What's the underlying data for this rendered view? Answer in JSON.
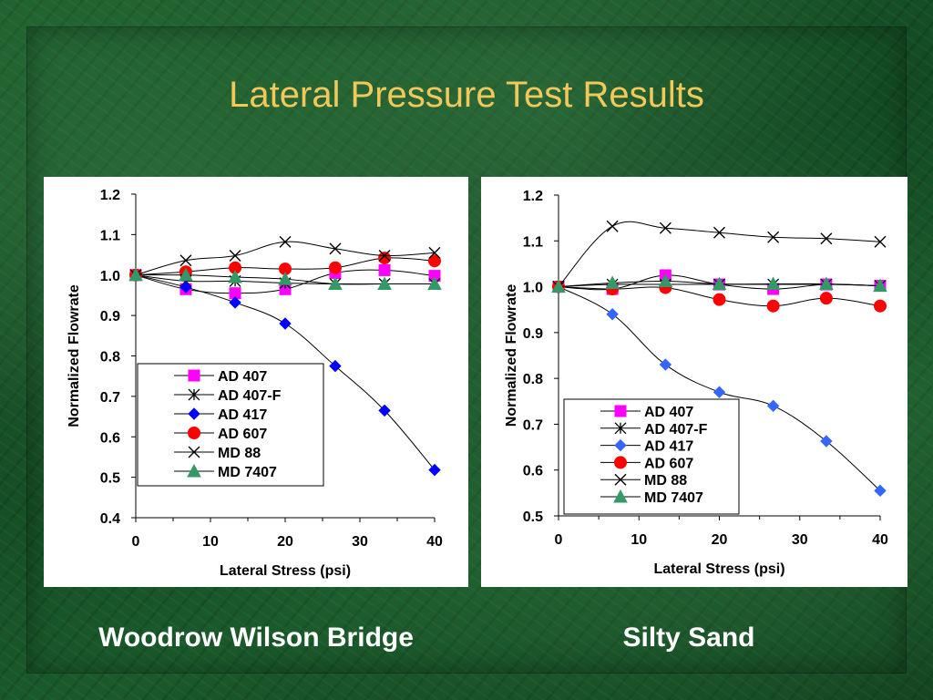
{
  "slide": {
    "title": "Lateral Pressure Test Results",
    "caption_left": "Woodrow Wilson Bridge",
    "caption_right": "Silty Sand",
    "title_color": "#f2c85b",
    "background_color": "#0f4a1c"
  },
  "chart_data": [
    {
      "type": "line",
      "xlabel": "Lateral Stress (psi)",
      "ylabel": "Normalized Flowrate",
      "xlim": [
        0,
        40
      ],
      "ylim": [
        0.4,
        1.2
      ],
      "xticks": [
        0,
        10,
        20,
        30,
        40
      ],
      "yticks": [
        0.4,
        0.5,
        0.6,
        0.7,
        0.8,
        0.9,
        1.0,
        1.1,
        1.2
      ],
      "ytick_labels": [
        "0.4",
        "0.5",
        "0.6",
        "0.7",
        "0.8",
        "0.9",
        "1.0",
        "1.1",
        "1.2"
      ],
      "xtick_labels": [
        "0",
        "10",
        "20",
        "30",
        "40"
      ],
      "legend_position": "bottom-left",
      "series": [
        {
          "name": "AD 407",
          "marker": "square",
          "color": "#ff00ff",
          "x": [
            0,
            6.7,
            13.3,
            20,
            26.7,
            33.3,
            40
          ],
          "y": [
            1.0,
            0.965,
            0.955,
            0.965,
            1.005,
            1.012,
            0.998
          ]
        },
        {
          "name": "AD 407-F",
          "marker": "asterisk",
          "color": "#000000",
          "x": [
            0,
            6.7,
            13.3,
            20,
            26.7,
            33.3,
            40
          ],
          "y": [
            1.0,
            0.985,
            0.985,
            0.98,
            0.978,
            0.978,
            0.978
          ]
        },
        {
          "name": "AD 417",
          "marker": "diamond",
          "color": "#0000ff",
          "x": [
            0,
            6.7,
            13.3,
            20,
            26.7,
            33.3,
            40
          ],
          "y": [
            1.0,
            0.97,
            0.932,
            0.88,
            0.775,
            0.665,
            0.518
          ]
        },
        {
          "name": "AD 607",
          "marker": "circle",
          "color": "#ff0000",
          "x": [
            0,
            6.7,
            13.3,
            20,
            26.7,
            33.3,
            40
          ],
          "y": [
            1.0,
            1.008,
            1.018,
            1.015,
            1.018,
            1.042,
            1.035
          ]
        },
        {
          "name": "MD 88",
          "marker": "x",
          "color": "#000000",
          "x": [
            0,
            6.7,
            13.3,
            20,
            26.7,
            33.3,
            40
          ],
          "y": [
            1.0,
            1.036,
            1.048,
            1.082,
            1.065,
            1.048,
            1.055
          ]
        },
        {
          "name": "MD 7407",
          "marker": "triangle",
          "color": "#339966",
          "x": [
            0,
            6.7,
            13.3,
            20,
            26.7,
            33.3,
            40
          ],
          "y": [
            1.0,
            1.0,
            0.995,
            0.99,
            0.978,
            0.978,
            0.978
          ]
        }
      ]
    },
    {
      "type": "line",
      "xlabel": "Lateral Stress (psi)",
      "ylabel": "Normalized Flowrate",
      "xlim": [
        0,
        40
      ],
      "ylim": [
        0.5,
        1.2
      ],
      "xticks": [
        0,
        10,
        20,
        30,
        40
      ],
      "yticks": [
        0.5,
        0.6,
        0.7,
        0.8,
        0.9,
        1.0,
        1.1,
        1.2
      ],
      "ytick_labels": [
        "0.5",
        "0.6",
        "0.7",
        "0.8",
        "0.9",
        "1.0",
        "1.1",
        "1.2"
      ],
      "xtick_labels": [
        "0",
        "10",
        "20",
        "30",
        "40"
      ],
      "legend_position": "bottom-left",
      "series": [
        {
          "name": "AD 407",
          "marker": "square",
          "color": "#ff00ff",
          "x": [
            0,
            6.7,
            13.3,
            20,
            26.7,
            33.3,
            40
          ],
          "y": [
            1.0,
            0.995,
            1.025,
            1.005,
            0.995,
            1.005,
            1.002
          ]
        },
        {
          "name": "AD 407-F",
          "marker": "asterisk",
          "color": "#000000",
          "x": [
            0,
            6.7,
            13.3,
            20,
            26.7,
            33.3,
            40
          ],
          "y": [
            1.0,
            1.005,
            1.005,
            1.005,
            1.005,
            1.005,
            1.002
          ]
        },
        {
          "name": "AD 417",
          "marker": "diamond",
          "color": "#3366ff",
          "x": [
            0,
            6.7,
            13.3,
            20,
            26.7,
            33.3,
            40
          ],
          "y": [
            1.0,
            0.94,
            0.83,
            0.77,
            0.74,
            0.663,
            0.555
          ]
        },
        {
          "name": "AD 607",
          "marker": "circle",
          "color": "#ff0000",
          "x": [
            0,
            6.7,
            13.3,
            20,
            26.7,
            33.3,
            40
          ],
          "y": [
            1.0,
            0.995,
            0.998,
            0.972,
            0.958,
            0.975,
            0.958
          ]
        },
        {
          "name": "MD 88",
          "marker": "x",
          "color": "#000000",
          "x": [
            0,
            6.7,
            13.3,
            20,
            26.7,
            33.3,
            40
          ],
          "y": [
            1.0,
            1.132,
            1.128,
            1.118,
            1.108,
            1.105,
            1.098
          ]
        },
        {
          "name": "MD 7407",
          "marker": "triangle",
          "color": "#339966",
          "x": [
            0,
            6.7,
            13.3,
            20,
            26.7,
            33.3,
            40
          ],
          "y": [
            1.0,
            1.008,
            1.012,
            1.006,
            1.006,
            1.006,
            1.002
          ]
        }
      ]
    }
  ]
}
